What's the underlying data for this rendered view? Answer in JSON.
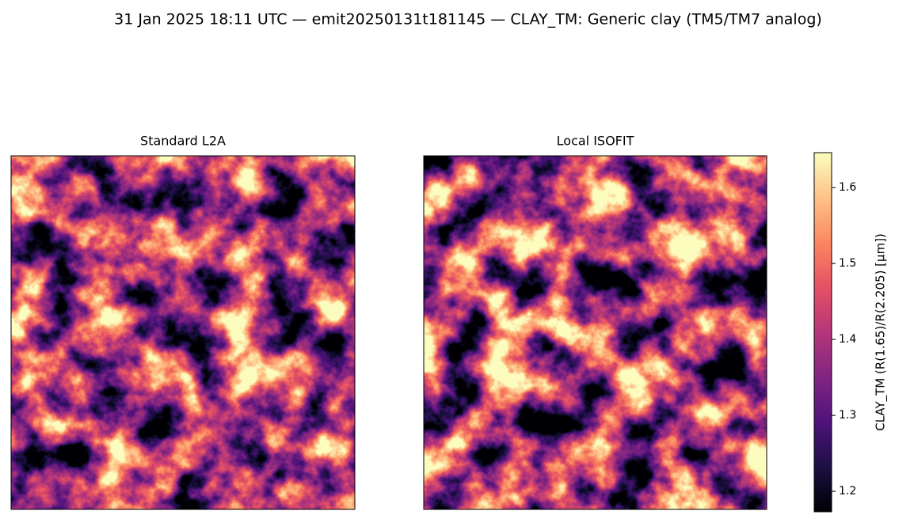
{
  "chart_data": {
    "type": "image",
    "title": "31 Jan 2025 18:11 UTC — emit20250131t181145 — CLAY_TM: Generic clay (TM5/TM7 analog)",
    "subplot_titles": [
      "Standard L2A",
      "Local ISOFIT"
    ],
    "cmap": "magma",
    "colorbar_label": "CLAY_TM  (R(1.65)/R(2.205)  [µm])",
    "clim": [
      1.173,
      1.646
    ],
    "cticks": [
      1.2,
      1.3,
      1.4,
      1.5,
      1.6
    ]
  }
}
